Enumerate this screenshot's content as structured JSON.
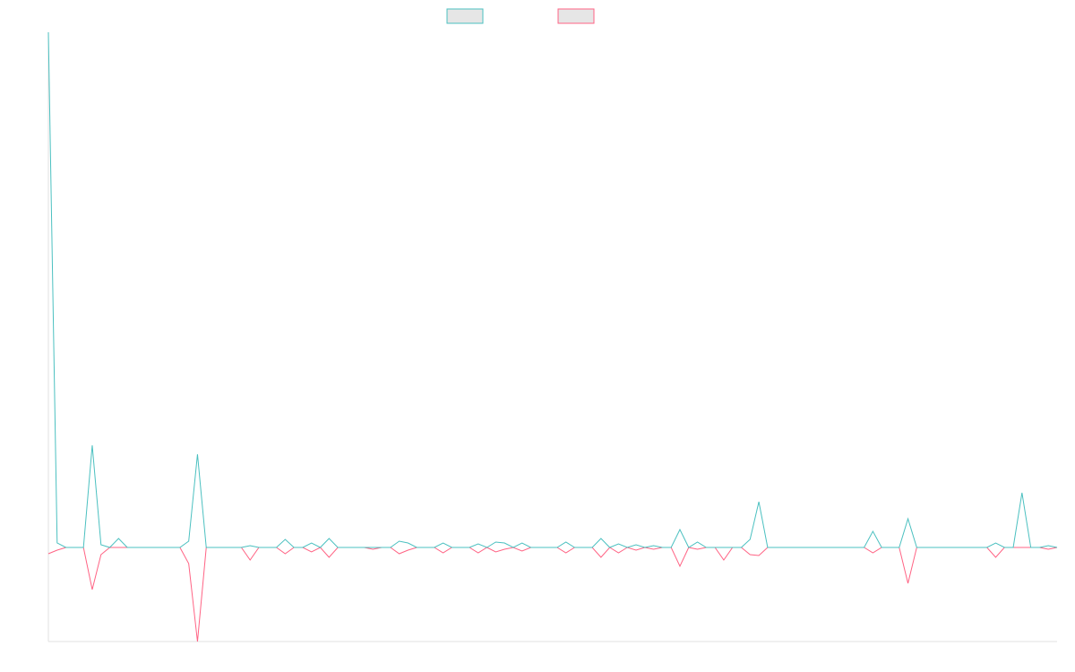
{
  "chart_data": {
    "type": "line",
    "legend": "top",
    "grid": false,
    "ylim": [
      -105,
      575
    ],
    "categories": [
      null,
      null,
      null,
      null,
      null,
      null,
      null,
      null,
      null,
      null,
      null,
      null,
      null,
      null,
      null,
      null,
      null,
      null,
      null,
      null,
      null,
      null,
      null,
      null,
      null,
      null,
      null,
      null,
      null,
      null,
      null,
      null,
      null,
      null,
      null,
      null,
      null,
      null,
      null,
      null,
      null,
      null,
      null,
      null,
      null,
      null,
      null,
      null,
      null,
      null,
      null,
      null,
      null,
      null,
      null,
      null,
      null,
      null,
      null,
      null,
      null,
      null,
      null,
      null,
      null,
      null,
      null,
      null,
      null,
      null,
      null,
      null,
      null,
      null,
      null,
      null,
      null,
      null,
      null,
      null,
      null,
      null,
      null,
      null,
      null,
      null,
      null,
      null,
      null,
      null,
      null,
      null,
      null,
      null,
      null,
      null,
      null,
      null,
      null,
      null,
      null,
      null,
      null,
      null,
      null,
      null,
      null,
      null,
      null,
      null,
      null,
      null,
      null,
      null,
      null,
      null
    ],
    "series": [
      {
        "color": "#4bc0c0",
        "values": [
          575,
          5,
          0,
          0,
          0,
          114,
          3,
          0,
          10,
          0,
          0,
          0,
          0,
          0,
          0,
          0,
          7,
          104,
          0,
          0,
          0,
          0,
          0,
          2,
          0,
          0,
          0,
          9,
          0,
          0,
          5,
          0,
          10,
          0,
          0,
          0,
          0,
          0,
          0,
          0,
          7,
          5,
          0,
          0,
          0,
          5,
          0,
          0,
          0,
          4,
          0,
          6,
          5,
          0,
          5,
          0,
          0,
          0,
          0,
          6,
          0,
          0,
          0,
          10,
          0,
          4,
          0,
          3,
          0,
          2,
          0,
          0,
          20,
          0,
          6,
          0,
          0,
          0,
          0,
          0,
          9,
          51,
          0,
          0,
          0,
          0,
          0,
          0,
          0,
          0,
          0,
          0,
          0,
          0,
          18,
          0,
          0,
          0,
          32,
          0,
          0,
          0,
          0,
          0,
          0,
          0,
          0,
          0,
          5,
          0,
          0,
          61,
          0,
          0,
          2,
          0
        ]
      },
      {
        "color": "#ff6384",
        "values": [
          -7,
          -3,
          0,
          0,
          0,
          -47,
          -8,
          0,
          0,
          0,
          0,
          0,
          0,
          0,
          0,
          0,
          -18,
          -105,
          0,
          0,
          0,
          0,
          0,
          -14,
          0,
          0,
          0,
          -7,
          0,
          0,
          -5,
          0,
          -11,
          0,
          0,
          0,
          0,
          -2,
          0,
          0,
          -7,
          -3,
          0,
          0,
          0,
          -6,
          0,
          0,
          0,
          -6,
          0,
          -5,
          -2,
          0,
          -4,
          0,
          0,
          0,
          0,
          -6,
          0,
          0,
          0,
          -11,
          0,
          -6,
          0,
          -3,
          0,
          -2,
          0,
          0,
          -21,
          0,
          -2,
          0,
          0,
          -14,
          0,
          0,
          -8,
          -9,
          0,
          0,
          0,
          0,
          0,
          0,
          0,
          0,
          0,
          0,
          0,
          0,
          -6,
          0,
          0,
          0,
          -40,
          0,
          0,
          0,
          0,
          0,
          0,
          0,
          0,
          0,
          -11,
          0,
          0,
          0,
          0,
          0,
          -2,
          0
        ]
      }
    ]
  }
}
